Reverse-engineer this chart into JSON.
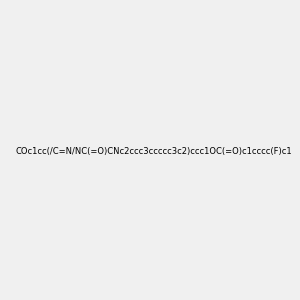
{
  "smiles": "COc1cc(/C=N/NC(=O)CNc2ccc3ccccc3c2)ccc1OC(=O)c1cccc(F)c1",
  "image_size": 300,
  "background_color": "#f0f0f0",
  "title": ""
}
